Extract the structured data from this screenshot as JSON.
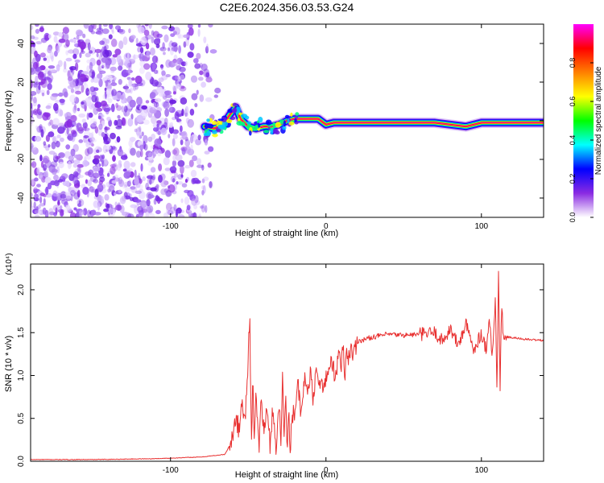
{
  "figure": {
    "title": "C2E6.2024.356.03.53.G24"
  },
  "chart_data": [
    {
      "type": "heatmap",
      "title": "C2E6.2024.356.03.53.G24",
      "xlabel": "Height of straight line (km)",
      "ylabel": "Frequency (Hz)",
      "xlim": [
        -190,
        140
      ],
      "ylim": [
        -50,
        50
      ],
      "x_ticks": [
        -100,
        0,
        100
      ],
      "y_ticks": [
        -40,
        -20,
        0,
        20,
        40
      ],
      "grid": false,
      "colorbar": {
        "label": "Normalized spectral amplitude",
        "range": [
          0,
          1
        ],
        "ticks": [
          "0.0",
          "0.2",
          "0.4",
          "0.6",
          "0.8"
        ],
        "colors": [
          "#ffffff",
          "#8a2be2",
          "#0000ff",
          "#00ffff",
          "#00ff00",
          "#ffff00",
          "#ff8000",
          "#ff0000",
          "#ff00ff"
        ]
      },
      "noise_region_x": [
        -190,
        -72
      ],
      "ridge": {
        "x": [
          -78,
          -72,
          -66,
          -62,
          -58,
          -55,
          -50,
          -45,
          -40,
          -35,
          -30,
          -25,
          -20,
          -15,
          -10,
          -5,
          0,
          5,
          10,
          20,
          40,
          60,
          70,
          80,
          90,
          100,
          105,
          110,
          120,
          140
        ],
        "freq": [
          -3,
          -4,
          -2,
          3,
          7,
          1,
          -3,
          -4,
          -3,
          -3,
          -2,
          0,
          1,
          1,
          1,
          1,
          -2,
          -1,
          -1,
          -1,
          -1,
          -1,
          -1,
          -2,
          -3,
          -1,
          -1,
          -1,
          -1,
          -1
        ]
      }
    },
    {
      "type": "line",
      "xlabel": "Height of straight line (km)",
      "ylabel": "SNR (10 * v/v)",
      "scale_label": "(x10⁴)",
      "xlim": [
        -190,
        140
      ],
      "ylim": [
        0,
        2.3
      ],
      "x_ticks": [
        -100,
        0,
        100
      ],
      "y_ticks": [
        "0.0",
        "0.5",
        "1.0",
        "1.5",
        "2.0"
      ],
      "grid": false,
      "line_color": "#e83030",
      "series": [
        {
          "x": [
            -190,
            -150,
            -110,
            -80,
            -65,
            -60,
            -58,
            -56,
            -54,
            -52,
            -50,
            -49,
            -48,
            -47,
            -46,
            -45,
            -44,
            -43,
            -42,
            -40,
            -38,
            -36,
            -34,
            -32,
            -30,
            -29,
            -28,
            -27,
            -26,
            -25,
            -24,
            -23,
            -22,
            -20,
            -18,
            -16,
            -14,
            -12,
            -10,
            -8,
            -6,
            -4,
            -2,
            0,
            2,
            4,
            6,
            8,
            10,
            11,
            12,
            13,
            14,
            16,
            18,
            20,
            25,
            30,
            40,
            50,
            60,
            70,
            75,
            80,
            85,
            90,
            95,
            100,
            103,
            105,
            107,
            109,
            110,
            111,
            112,
            113,
            114,
            116,
            120,
            130,
            140
          ],
          "values": [
            0.02,
            0.02,
            0.03,
            0.05,
            0.08,
            0.25,
            0.55,
            0.35,
            0.7,
            0.45,
            1.25,
            1.72,
            0.3,
            0.9,
            0.15,
            0.8,
            0.4,
            0.2,
            0.75,
            0.35,
            0.6,
            0.2,
            0.65,
            0.1,
            0.7,
            0.15,
            1.05,
            0.35,
            0.8,
            0.1,
            0.6,
            0.05,
            0.55,
            0.6,
            0.9,
            0.5,
            0.95,
            0.85,
            1.0,
            0.7,
            1.1,
            0.95,
            0.8,
            1.0,
            1.05,
            1.2,
            0.9,
            1.25,
            1.1,
            1.45,
            0.85,
            1.35,
            1.2,
            1.3,
            1.25,
            1.4,
            1.42,
            1.45,
            1.48,
            1.47,
            1.48,
            1.5,
            1.4,
            1.55,
            1.35,
            1.6,
            1.3,
            1.5,
            1.3,
            1.7,
            1.2,
            1.9,
            0.8,
            2.25,
            0.75,
            1.9,
            1.4,
            1.45,
            1.44,
            1.42,
            1.41
          ]
        }
      ]
    }
  ]
}
